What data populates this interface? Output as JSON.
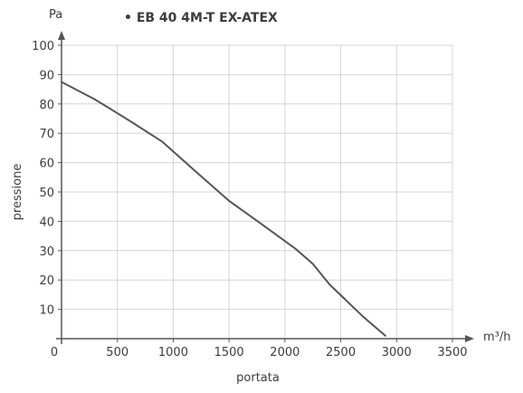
{
  "chart_data": {
    "type": "line",
    "title": "• EB 40 4M-T EX-ATEX",
    "xlabel": "portata",
    "ylabel": "pressione",
    "x_unit": "m³/h",
    "y_unit": "Pa",
    "xlim": [
      0,
      3500
    ],
    "ylim": [
      0,
      100
    ],
    "x_ticks": [
      "0",
      "500",
      "1000",
      "1500",
      "2000",
      "2500",
      "3000",
      "3500"
    ],
    "y_ticks": [
      "10",
      "20",
      "30",
      "40",
      "50",
      "60",
      "70",
      "80",
      "90",
      "100"
    ],
    "grid": true,
    "series": [
      {
        "color": "#555555",
        "x": [
          0,
          300,
          600,
          900,
          1200,
          1500,
          1800,
          2100,
          2250,
          2400,
          2700,
          2900
        ],
        "y": [
          87.5,
          81.5,
          74.5,
          67.2,
          57,
          47,
          38.8,
          30.5,
          25.5,
          18.5,
          7.5,
          1
        ]
      }
    ]
  }
}
